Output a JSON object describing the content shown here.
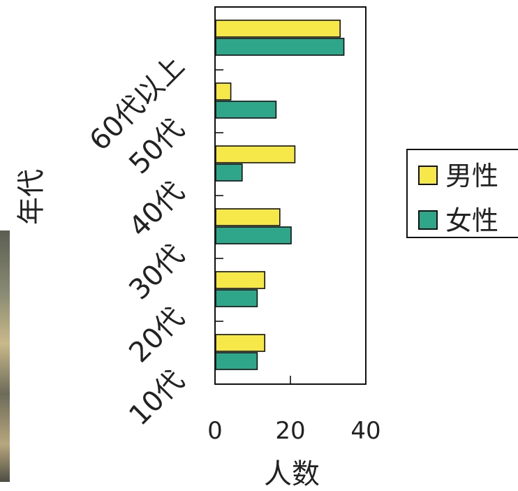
{
  "chart_data": {
    "type": "bar",
    "orientation": "horizontal",
    "categories": [
      "10代",
      "20代",
      "30代",
      "40代",
      "50代",
      "60代以上"
    ],
    "series": [
      {
        "name": "男性",
        "color": "#f7e84a",
        "values": [
          13,
          13,
          17,
          21,
          4,
          33
        ]
      },
      {
        "name": "女性",
        "color": "#2fa58a",
        "values": [
          11,
          11,
          20,
          7,
          16,
          34
        ]
      }
    ],
    "xlabel": "人数",
    "ylabel": "年代",
    "xticks": [
      "0",
      "20",
      "40"
    ],
    "xlim": [
      0,
      40
    ],
    "grid": false,
    "legend_position": "right"
  }
}
